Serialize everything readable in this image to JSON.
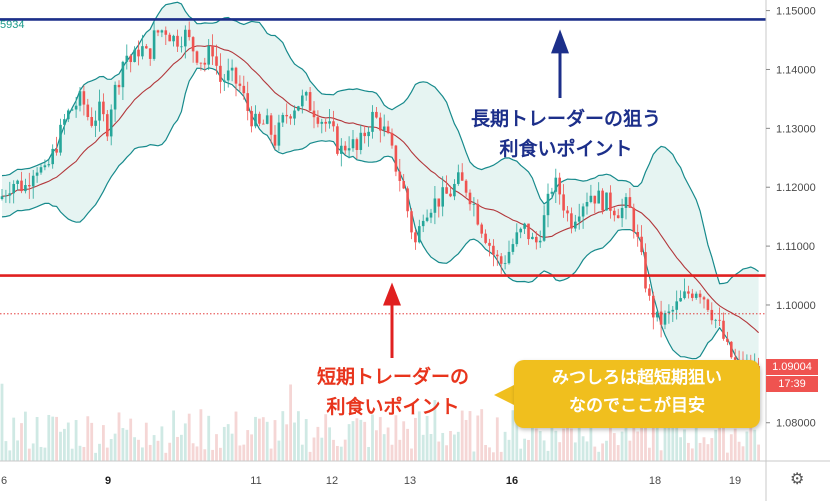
{
  "chart_data": {
    "type": "candlestick",
    "title": "",
    "xlabel": "",
    "ylabel": "",
    "ylim": [
      1.0735,
      1.1518
    ],
    "y_ticks": [
      "1.15000",
      "1.14000",
      "1.13000",
      "1.12000",
      "1.11000",
      "1.10000",
      "1.09000",
      "1.08000"
    ],
    "x_ticks": [
      "6",
      "9",
      "11",
      "12",
      "13",
      "16",
      "18",
      "19"
    ],
    "x_bold_ticks": [
      "9",
      "16"
    ],
    "legend": "none",
    "grid": false,
    "current_price": "1.09004",
    "countdown": "17:39",
    "corner_value": "5934",
    "dotted_price_line": 1.0985,
    "horizontal_lines": [
      {
        "name": "long-term",
        "value": 1.1485,
        "color": "#1c2f8a"
      },
      {
        "name": "short-term",
        "value": 1.105,
        "color": "#e02020"
      }
    ],
    "price_path": [
      [
        0,
        1.118
      ],
      [
        12,
        1.121
      ],
      [
        25,
        1.12
      ],
      [
        35,
        1.124
      ],
      [
        45,
        1.122
      ],
      [
        58,
        1.128
      ],
      [
        66,
        1.132
      ],
      [
        75,
        1.134
      ],
      [
        82,
        1.135
      ],
      [
        90,
        1.131
      ],
      [
        100,
        1.133
      ],
      [
        107,
        1.13
      ],
      [
        112,
        1.135
      ],
      [
        118,
        1.138
      ],
      [
        125,
        1.143
      ],
      [
        132,
        1.141
      ],
      [
        140,
        1.144
      ],
      [
        148,
        1.142
      ],
      [
        155,
        1.146
      ],
      [
        165,
        1.147
      ],
      [
        175,
        1.145
      ],
      [
        185,
        1.146
      ],
      [
        195,
        1.143
      ],
      [
        205,
        1.141
      ],
      [
        212,
        1.144
      ],
      [
        220,
        1.138
      ],
      [
        230,
        1.139
      ],
      [
        240,
        1.137
      ],
      [
        248,
        1.133
      ],
      [
        258,
        1.13
      ],
      [
        266,
        1.131
      ],
      [
        275,
        1.128
      ],
      [
        285,
        1.132
      ],
      [
        295,
        1.134
      ],
      [
        305,
        1.135
      ],
      [
        315,
        1.133
      ],
      [
        325,
        1.131
      ],
      [
        333,
        1.129
      ],
      [
        340,
        1.126
      ],
      [
        350,
        1.128
      ],
      [
        357,
        1.126
      ],
      [
        364,
        1.129
      ],
      [
        372,
        1.132
      ],
      [
        380,
        1.131
      ],
      [
        388,
        1.128
      ],
      [
        395,
        1.124
      ],
      [
        403,
        1.12
      ],
      [
        410,
        1.114
      ],
      [
        416,
        1.11
      ],
      [
        423,
        1.116
      ],
      [
        430,
        1.117
      ],
      [
        440,
        1.118
      ],
      [
        450,
        1.119
      ],
      [
        458,
        1.121
      ],
      [
        466,
        1.12
      ],
      [
        472,
        1.118
      ],
      [
        480,
        1.114
      ],
      [
        488,
        1.111
      ],
      [
        495,
        1.108
      ],
      [
        502,
        1.107
      ],
      [
        515,
        1.111
      ],
      [
        525,
        1.113
      ],
      [
        535,
        1.11
      ],
      [
        545,
        1.115
      ],
      [
        553,
        1.121
      ],
      [
        560,
        1.119
      ],
      [
        570,
        1.114
      ],
      [
        580,
        1.117
      ],
      [
        590,
        1.119
      ],
      [
        600,
        1.118
      ],
      [
        610,
        1.117
      ],
      [
        620,
        1.116
      ],
      [
        628,
        1.117
      ],
      [
        635,
        1.113
      ],
      [
        642,
        1.107
      ],
      [
        650,
        1.1
      ],
      [
        658,
        1.097
      ],
      [
        668,
        1.098
      ],
      [
        678,
        1.1
      ],
      [
        688,
        1.102
      ],
      [
        698,
        1.103
      ],
      [
        706,
        1.101
      ],
      [
        714,
        1.098
      ],
      [
        720,
        1.096
      ],
      [
        728,
        1.092
      ],
      [
        736,
        1.09
      ],
      [
        745,
        1.089
      ],
      [
        752,
        1.088
      ],
      [
        758,
        1.09
      ],
      [
        763,
        1.0905
      ]
    ],
    "series": [
      {
        "name": "",
        "values_source": "price_path"
      }
    ]
  },
  "annotations": {
    "long_term_line1": "長期トレーダーの狙う",
    "long_term_line2": "利食いポイント",
    "short_term_line1": "短期トレーダーの",
    "short_term_line2": "利食いポイント",
    "bubble_line1": "みつしろは超短期狙い",
    "bubble_line2": "なのでここが目安"
  },
  "colors": {
    "long_line": "#1c2f8a",
    "short_line": "#e02020",
    "up_candle": "#26a69a",
    "down_candle": "#ef5350",
    "band_stroke": "#178a8c",
    "band_fill": "#e6f4f2",
    "ma": "#b2373b",
    "bubble": "#f0bf1e",
    "price_tag": "#ef5350"
  },
  "icons": {
    "settings": "gear-icon"
  }
}
